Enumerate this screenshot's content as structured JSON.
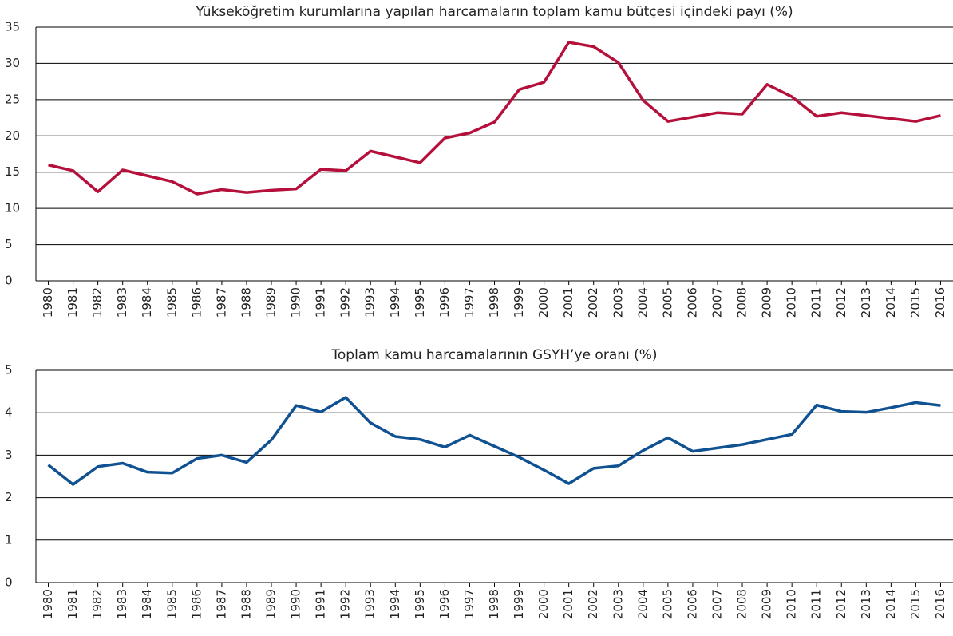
{
  "chart_data": [
    {
      "type": "line",
      "title": "Yükseköğretim kurumlarına yapılan harcamaların toplam kamu bütçesi içindeki payı (%)",
      "categories": [
        "1980",
        "1981",
        "1982",
        "1983",
        "1984",
        "1985",
        "1986",
        "1987",
        "1988",
        "1989",
        "1990",
        "1991",
        "1992",
        "1993",
        "1994",
        "1995",
        "1996",
        "1997",
        "1998",
        "1999",
        "2000",
        "2001",
        "2002",
        "2003",
        "2004",
        "2005",
        "2006",
        "2007",
        "2008",
        "2009",
        "2010",
        "2011",
        "2012",
        "2013",
        "2014",
        "2015",
        "2016"
      ],
      "values": [
        16.0,
        15.2,
        12.3,
        15.3,
        14.5,
        13.7,
        12.0,
        12.6,
        12.2,
        12.5,
        12.7,
        15.4,
        15.2,
        17.9,
        17.1,
        16.3,
        19.7,
        20.4,
        21.9,
        26.4,
        27.4,
        32.9,
        32.3,
        30.1,
        24.9,
        22.0,
        22.6,
        23.2,
        23.0,
        27.1,
        25.4,
        22.7,
        23.2,
        22.8,
        22.4,
        22.0,
        22.8
      ],
      "color": "#b5103c",
      "ylim": [
        0,
        35
      ],
      "yticks": [
        0,
        5,
        10,
        15,
        20,
        25,
        30,
        35
      ],
      "grid": true
    },
    {
      "type": "line",
      "title": "Toplam kamu harcamalarının GSYH’ye oranı (%)",
      "categories": [
        "1980",
        "1981",
        "1982",
        "1983",
        "1984",
        "1985",
        "1986",
        "1987",
        "1988",
        "1989",
        "1990",
        "1991",
        "1992",
        "1993",
        "1994",
        "1995",
        "1996",
        "1997",
        "1998",
        "1999",
        "2000",
        "2001",
        "2002",
        "2003",
        "2004",
        "2005",
        "2006",
        "2007",
        "2008",
        "2009",
        "2010",
        "2011",
        "2012",
        "2013",
        "2014",
        "2015",
        "2016"
      ],
      "values": [
        2.77,
        2.31,
        2.73,
        2.81,
        2.6,
        2.58,
        2.92,
        3.0,
        2.83,
        3.36,
        4.17,
        4.02,
        4.36,
        3.76,
        3.44,
        3.37,
        3.19,
        3.47,
        3.21,
        2.95,
        2.65,
        2.33,
        2.69,
        2.75,
        3.11,
        3.41,
        3.09,
        3.17,
        3.25,
        3.37,
        3.49,
        4.18,
        4.03,
        4.01,
        4.12,
        4.24,
        4.17
      ],
      "color": "#0f5191",
      "ylim": [
        0,
        5
      ],
      "yticks": [
        0,
        1,
        2,
        3,
        4,
        5
      ],
      "grid": true
    }
  ]
}
